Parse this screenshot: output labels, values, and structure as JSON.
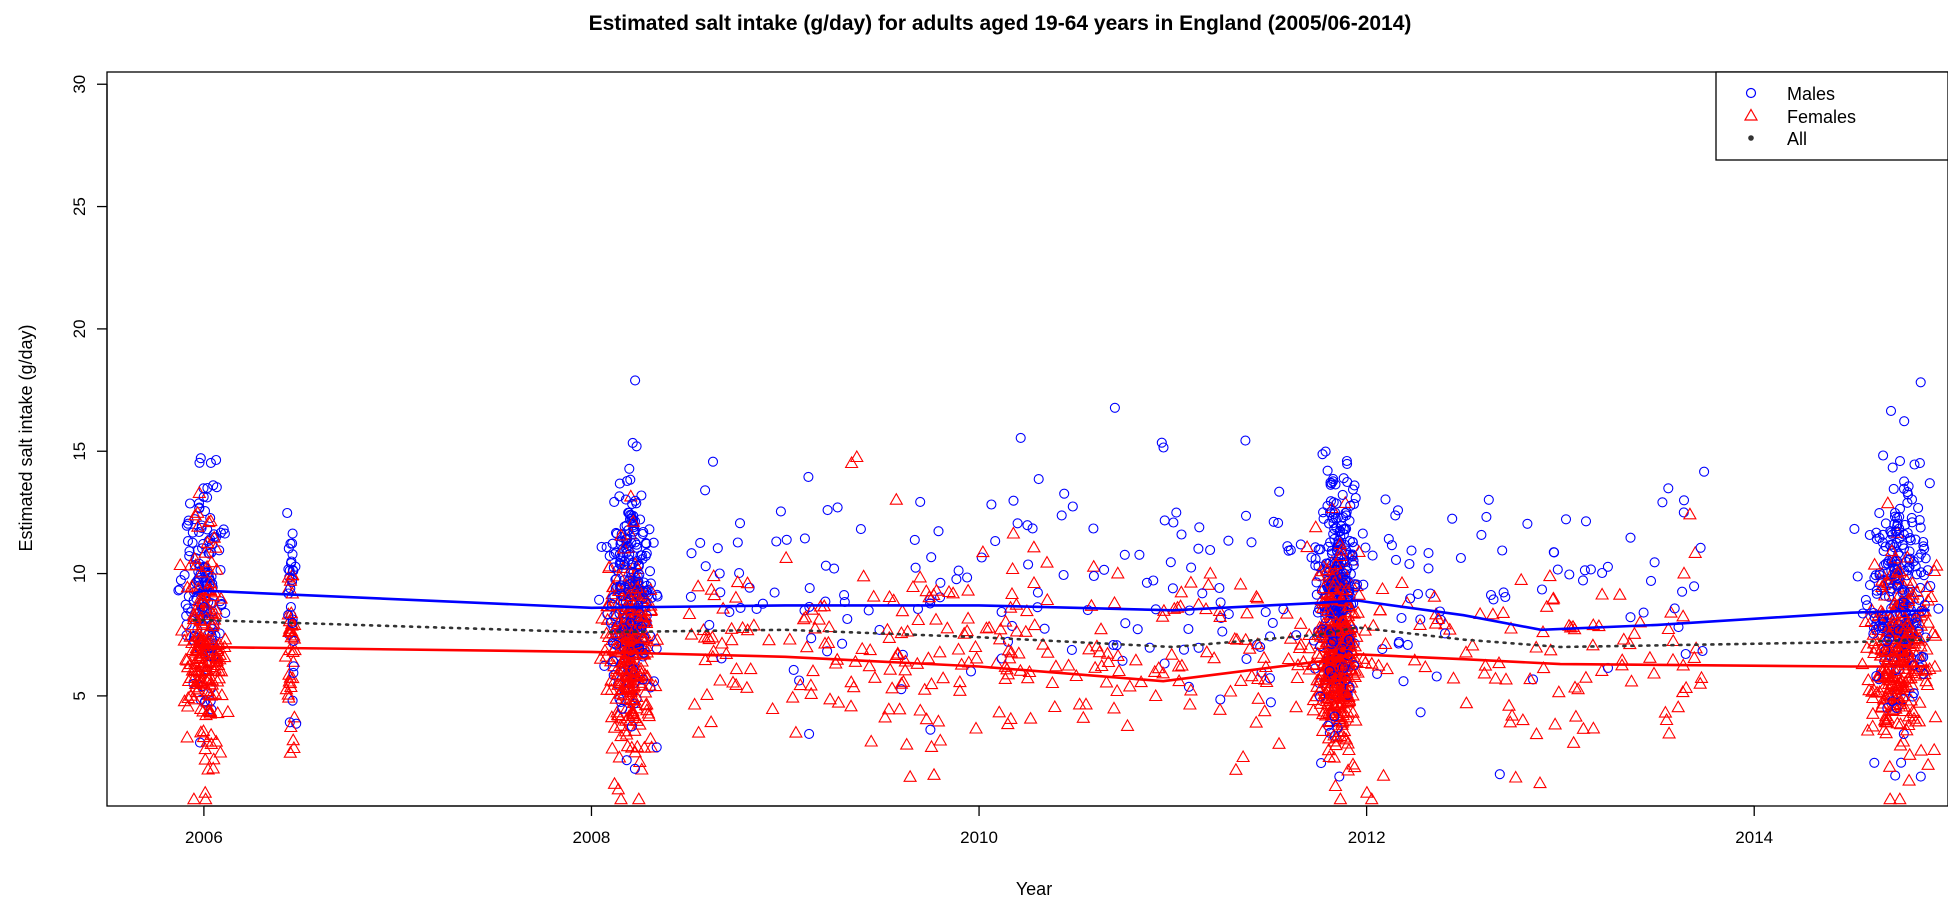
{
  "chart_data": {
    "type": "scatter",
    "title": "Estimated salt intake (g/day) for adults aged 19-64 years in England (2005/06-2014)",
    "xlabel": "Year",
    "ylabel": "Estimated salt intake (g/day)",
    "xlim": [
      2005.5,
      2015.0
    ],
    "ylim": [
      0.5,
      30.5
    ],
    "x_ticks": [
      2006,
      2008,
      2010,
      2012,
      2014
    ],
    "x_tick_labels": [
      "2006",
      "2008",
      "2010",
      "2012",
      "2014"
    ],
    "y_ticks": [
      5,
      10,
      15,
      20,
      25,
      30
    ],
    "y_tick_labels": [
      "5",
      "10",
      "15",
      "20",
      "25",
      "30"
    ],
    "grid": false,
    "legend": {
      "position": "top-right",
      "entries": [
        {
          "label": "Males",
          "marker": "circle-open",
          "color": "#0000FF"
        },
        {
          "label": "Females",
          "marker": "triangle-open",
          "color": "#FF0000"
        },
        {
          "label": "All",
          "marker": "dot",
          "color": "#333333"
        }
      ]
    },
    "colors": {
      "males": "#0000FF",
      "females": "#FF0000",
      "all": "#333333"
    },
    "survey_clusters": [
      {
        "center": 2006.0,
        "spread": 0.12,
        "n_male": 150,
        "n_female": 190
      },
      {
        "center": 2006.45,
        "spread": 0.03,
        "n_male": 30,
        "n_female": 40
      },
      {
        "center": 2008.2,
        "spread": 0.14,
        "n_male": 240,
        "n_female": 300
      },
      {
        "center": 2011.85,
        "spread": 0.12,
        "n_male": 280,
        "n_female": 360
      },
      {
        "center": 2014.75,
        "spread": 0.2,
        "n_male": 230,
        "n_female": 300
      }
    ],
    "sparse_range": {
      "from": 2008.5,
      "to": 2013.75,
      "n_male": 230,
      "n_female": 380
    },
    "series": [
      {
        "name": "Males",
        "type": "line",
        "x": [
          2005.95,
          2006.0,
          2008.0,
          2009.0,
          2010.0,
          2011.0,
          2011.75,
          2011.95,
          2012.5,
          2012.9,
          2013.5,
          2014.5,
          2014.9
        ],
        "y": [
          9.2,
          9.3,
          8.6,
          8.7,
          8.7,
          8.5,
          8.8,
          8.9,
          8.3,
          7.7,
          7.9,
          8.4,
          8.5
        ]
      },
      {
        "name": "Females",
        "type": "line",
        "x": [
          2005.95,
          2006.0,
          2008.0,
          2009.0,
          2010.0,
          2010.95,
          2011.75,
          2011.95,
          2012.5,
          2013.0,
          2014.5,
          2014.9
        ],
        "y": [
          7.0,
          7.0,
          6.8,
          6.6,
          6.2,
          5.6,
          6.4,
          6.7,
          6.5,
          6.3,
          6.2,
          6.2
        ]
      },
      {
        "name": "All",
        "type": "line-dotted",
        "x": [
          2005.95,
          2006.0,
          2008.0,
          2009.0,
          2010.0,
          2011.0,
          2011.75,
          2011.95,
          2012.5,
          2013.0,
          2014.5,
          2014.9
        ],
        "y": [
          8.1,
          8.1,
          7.6,
          7.7,
          7.4,
          7.0,
          7.5,
          7.8,
          7.3,
          7.0,
          7.2,
          7.3
        ]
      }
    ]
  }
}
